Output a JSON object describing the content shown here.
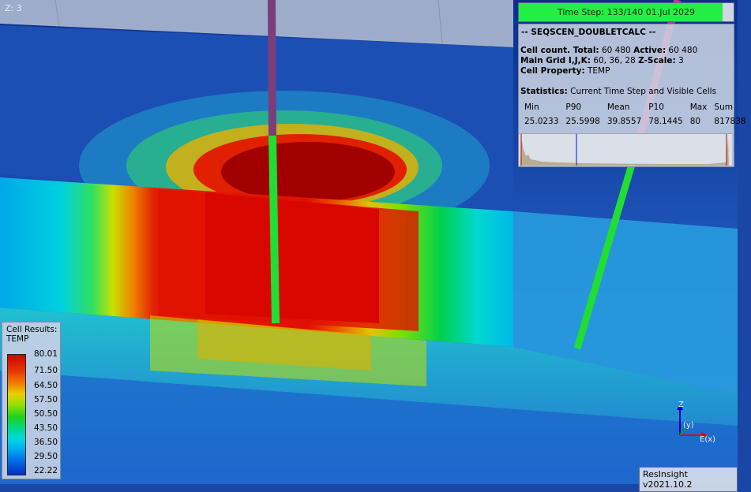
{
  "viewer": {
    "z_label": "Z: 3",
    "version_label": "ResInsight v2021.10.2"
  },
  "time_step": {
    "label": "Time Step: 133/140 01.Jul 2029",
    "current": 133,
    "total": 140,
    "progress_fraction": 0.95,
    "color": "#22ee44"
  },
  "info": {
    "case_name": "-- SEQSCEN_DOUBLETCALC --",
    "cell_count_label": "Cell count. Total:",
    "cell_count_total": "60 480",
    "active_label": "Active:",
    "active_count": "60 480",
    "main_grid_label": "Main Grid I,J,K:",
    "main_grid_value": "60, 36, 28",
    "zscale_label": "Z-Scale:",
    "zscale_value": "3",
    "cell_property_label": "Cell Property:",
    "cell_property_value": "TEMP",
    "statistics_label": "Statistics:",
    "statistics_value": "Current Time Step and Visible Cells",
    "stats_headers": [
      "Min",
      "P90",
      "Mean",
      "P10",
      "Max",
      "Sum"
    ],
    "stats_values": [
      "25.0233",
      "25.5998",
      "39.8557",
      "78.1445",
      "80",
      "817838"
    ]
  },
  "legend": {
    "title_line1": "Cell Results:",
    "title_line2": "TEMP",
    "ticks": [
      "80.01",
      "71.50",
      "64.50",
      "57.50",
      "50.50",
      "43.50",
      "36.50",
      "29.50",
      "22.22"
    ]
  },
  "axis": {
    "z": "Z",
    "y": "(y)",
    "x": "E(x)"
  },
  "colors": {
    "background": "#1a47a6",
    "hot": "#e00000",
    "well_green": "#22dd33",
    "well_purple": "#8a3f7a"
  }
}
